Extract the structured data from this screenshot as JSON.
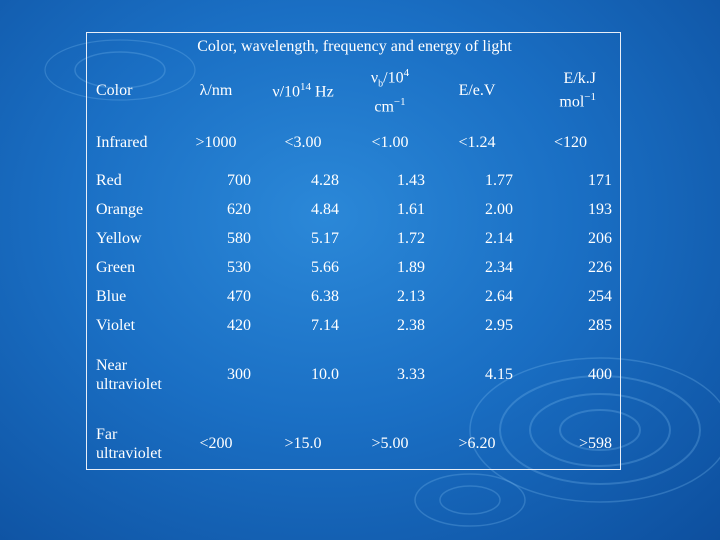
{
  "title": "Color, wavelength, frequency and energy of light",
  "headers": {
    "color": "Color",
    "wavelength": "λ/nm",
    "frequency_base": "ν/10",
    "frequency_exp": "14",
    "frequency_unit": " Hz",
    "wavenumber_sym": "ν",
    "wavenumber_sub": "b",
    "wavenumber_base": "/10",
    "wavenumber_exp": "4",
    "wavenumber_unit_base": "cm",
    "wavenumber_unit_exp": "−1",
    "energy_ev": "E/e.V",
    "energy_kj_line1": "E/k.J",
    "energy_kj_base": "mol",
    "energy_kj_exp": "−1"
  },
  "rows": [
    {
      "color": "Infrared",
      "wavelength": ">1000",
      "frequency": "<3.00",
      "wavenumber": "<1.00",
      "energy_ev": "<1.24",
      "energy_kj": "<120"
    },
    {
      "color": "Red",
      "wavelength": "700",
      "frequency": "4.28",
      "wavenumber": "1.43",
      "energy_ev": "1.77",
      "energy_kj": "171"
    },
    {
      "color": "Orange",
      "wavelength": "620",
      "frequency": "4.84",
      "wavenumber": "1.61",
      "energy_ev": "2.00",
      "energy_kj": "193"
    },
    {
      "color": "Yellow",
      "wavelength": "580",
      "frequency": "5.17",
      "wavenumber": "1.72",
      "energy_ev": "2.14",
      "energy_kj": "206"
    },
    {
      "color": "Green",
      "wavelength": "530",
      "frequency": "5.66",
      "wavenumber": "1.89",
      "energy_ev": "2.34",
      "energy_kj": "226"
    },
    {
      "color": "Blue",
      "wavelength": "470",
      "frequency": "6.38",
      "wavenumber": "2.13",
      "energy_ev": "2.64",
      "energy_kj": "254"
    },
    {
      "color": "Violet",
      "wavelength": "420",
      "frequency": "7.14",
      "wavenumber": "2.38",
      "energy_ev": "2.95",
      "energy_kj": "285"
    },
    {
      "color": "Near ultraviolet",
      "wavelength": "300",
      "frequency": "10.0",
      "wavenumber": "3.33",
      "energy_ev": "4.15",
      "energy_kj": "400"
    },
    {
      "color": "Far ultraviolet",
      "wavelength": "<200",
      "frequency": ">15.0",
      "wavenumber": ">5.00",
      "energy_ev": ">6.20",
      "energy_kj": ">598"
    }
  ],
  "colors": {
    "background_center": "#2b88d8",
    "background_edge": "#0d4f9e",
    "text": "#ffffff",
    "border": "#e8eef8"
  }
}
